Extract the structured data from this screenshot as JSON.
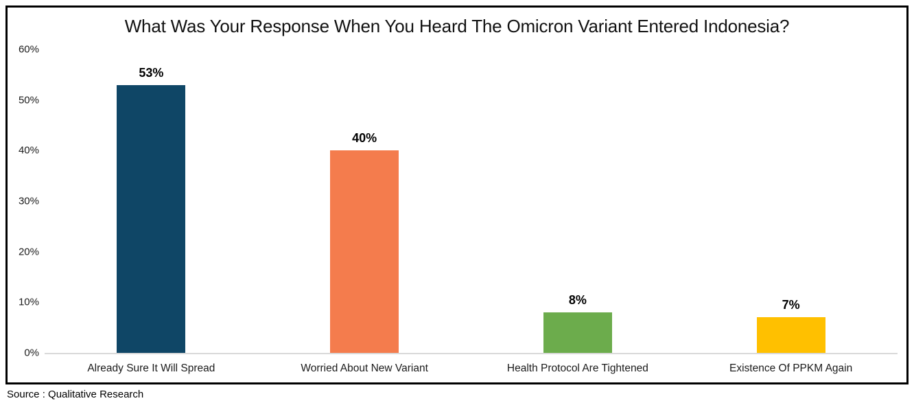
{
  "page": {
    "background": "#ffffff",
    "source_note": "Source : Qualitative Research"
  },
  "chart_data": {
    "type": "bar",
    "title": "What Was Your Response When You Heard The Omicron Variant Entered Indonesia?",
    "categories": [
      "Already Sure It Will Spread",
      "Worried About New Variant",
      "Health Protocol Are Tightened",
      "Existence Of PPKM Again"
    ],
    "values": [
      53,
      40,
      8,
      7
    ],
    "value_labels": [
      "53%",
      "40%",
      "8%",
      "7%"
    ],
    "bar_colors": [
      "#0F4666",
      "#F47C4D",
      "#6CAC4C",
      "#FFC000"
    ],
    "xlabel": "",
    "ylabel": "",
    "ylim": [
      0,
      60
    ],
    "ytick_interval": 10,
    "ytick_labels": [
      "0%",
      "10%",
      "20%",
      "30%",
      "40%",
      "50%",
      "60%"
    ],
    "grid": false,
    "legend": "none",
    "axis_line_color": "#d9d9d9",
    "frame_border_color": "#000000"
  }
}
